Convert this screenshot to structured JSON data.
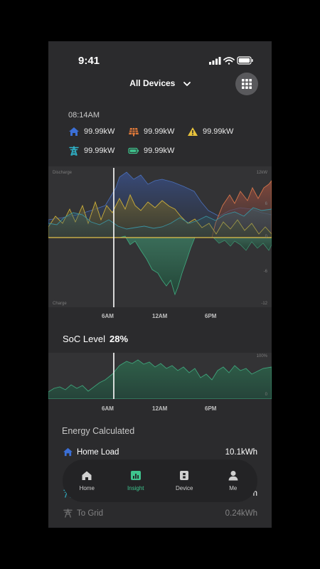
{
  "status": {
    "time": "9:41"
  },
  "header": {
    "device_selector": "All Devices"
  },
  "readout": {
    "time": "08:14AM",
    "metrics": [
      {
        "icon": "home-icon",
        "value": "99.99kW",
        "color": "#3b6fd6"
      },
      {
        "icon": "solar-panel-icon",
        "value": "99.99kW",
        "color": "#e07a3a"
      },
      {
        "icon": "generator-warning-icon",
        "value": "99.99kW",
        "color": "#e7c23c"
      },
      {
        "icon": "grid-tower-icon",
        "value": "99.99kW",
        "color": "#2fb3c9"
      },
      {
        "icon": "battery-icon",
        "value": "99.99kW",
        "color": "#3ec38d"
      }
    ]
  },
  "main_chart": {
    "top_left_label": "Discharge",
    "bottom_left_label": "Charge",
    "right_labels": [
      "12kW",
      "6",
      "0",
      "-6",
      "-12"
    ],
    "x_ticks": [
      "6AM",
      "12AM",
      "6PM"
    ]
  },
  "soc": {
    "title": "SoC Level",
    "value": "28%"
  },
  "soc_chart": {
    "right_labels": [
      "100%",
      "0"
    ],
    "x_ticks": [
      "6AM",
      "12AM",
      "6PM"
    ]
  },
  "energy": {
    "title": "Energy Calculated",
    "rows": [
      {
        "icon": "home-icon",
        "name": "Home Load",
        "value": "10.1kWh"
      },
      {
        "icon": "grid-tower-icon",
        "name": "",
        "value": "h"
      },
      {
        "icon": "grid-tower-icon",
        "name": "To Grid",
        "value": "0.24kWh"
      }
    ]
  },
  "nav": {
    "items": [
      {
        "label": "Home",
        "icon": "home-icon"
      },
      {
        "label": "Insight",
        "icon": "chart-icon"
      },
      {
        "label": "Device",
        "icon": "device-icon"
      },
      {
        "label": "Me",
        "icon": "person-icon"
      }
    ],
    "active_color": "#3ec38d"
  }
}
